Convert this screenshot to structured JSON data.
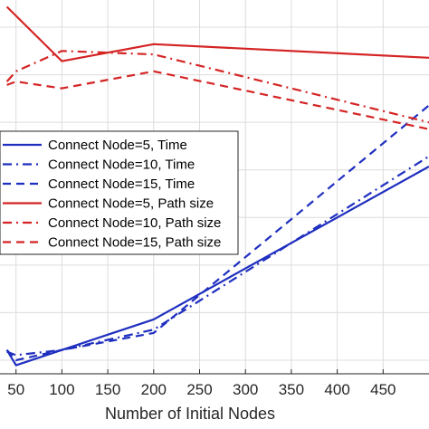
{
  "chart_data": {
    "type": "line",
    "title": "",
    "xlabel": "Number of Initial Nodes",
    "ylabel": "",
    "xlim": [
      0,
      500
    ],
    "x_ticks": [
      50,
      100,
      150,
      200,
      250,
      300,
      350,
      400,
      450
    ],
    "x_tick_labels": [
      "50",
      "100",
      "150",
      "200",
      "250",
      "300",
      "350",
      "400",
      "450"
    ],
    "grid": true,
    "legend_position": "center-left",
    "series": [
      {
        "name": "Connect Node=5, Time",
        "color": "#1f2fbf",
        "dash": "solid",
        "x": [
          40,
          50,
          100,
          200,
          500
        ],
        "y": [
          0.07,
          0.025,
          0.07,
          0.16,
          0.61
        ]
      },
      {
        "name": "Connect Node=10, Time",
        "color": "#1f2fbf",
        "dash": "dashdot",
        "x": [
          40,
          50,
          100,
          200,
          500
        ],
        "y": [
          0.065,
          0.055,
          0.07,
          0.13,
          0.64
        ]
      },
      {
        "name": "Connect Node=15, Time",
        "color": "#1f2fbf",
        "dash": "dashed",
        "x": [
          40,
          50,
          100,
          200,
          500
        ],
        "y": [
          0.07,
          0.04,
          0.07,
          0.12,
          0.79
        ]
      },
      {
        "name": "Connect Node=5, Path size",
        "color": "#d42424",
        "dash": "solid",
        "x": [
          40,
          100,
          200,
          500
        ],
        "y": [
          1.08,
          0.92,
          0.97,
          0.93
        ]
      },
      {
        "name": "Connect Node=10, Path size",
        "color": "#d42424",
        "dash": "dashdot",
        "x": [
          40,
          50,
          100,
          200,
          500
        ],
        "y": [
          0.86,
          0.89,
          0.95,
          0.94,
          0.74
        ]
      },
      {
        "name": "Connect Node=15, Path size",
        "color": "#d42424",
        "dash": "dashed",
        "x": [
          40,
          50,
          100,
          200,
          500
        ],
        "y": [
          0.85,
          0.86,
          0.84,
          0.89,
          0.72
        ]
      }
    ]
  }
}
